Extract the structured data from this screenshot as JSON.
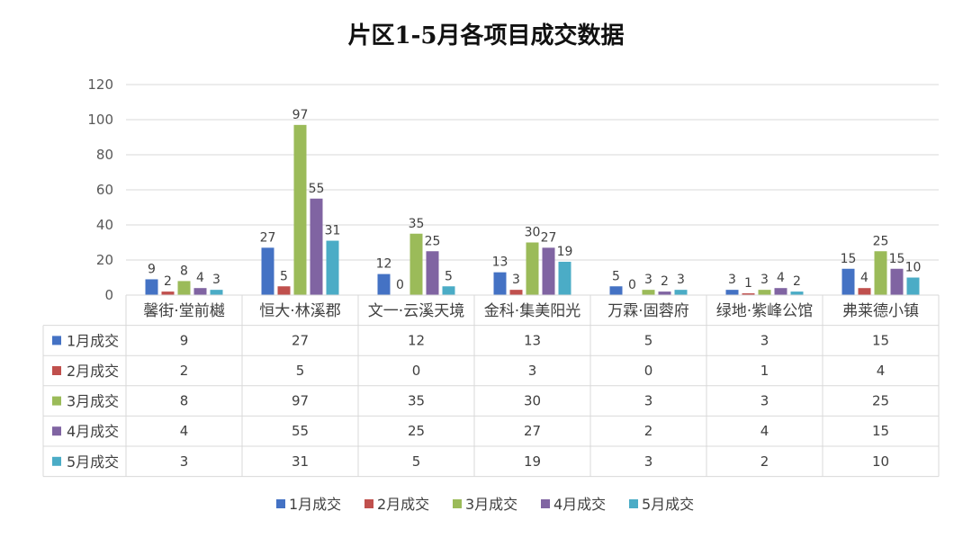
{
  "chart_data": {
    "type": "bar",
    "title": "片区1-5月各项目成交数据",
    "categories": [
      "馨街·堂前樾",
      "恒大·林溪郡",
      "文一·云溪天境",
      "金科·集美阳光",
      "万霖·固蓉府",
      "绿地·紫峰公馆",
      "弗莱德小镇"
    ],
    "series": [
      {
        "name": "1月成交",
        "color": "#4472C4",
        "values": [
          9,
          27,
          12,
          13,
          5,
          3,
          15
        ]
      },
      {
        "name": "2月成交",
        "color": "#C0504D",
        "values": [
          2,
          5,
          0,
          3,
          0,
          1,
          4
        ]
      },
      {
        "name": "3月成交",
        "color": "#9BBB59",
        "values": [
          8,
          97,
          35,
          30,
          3,
          3,
          25
        ]
      },
      {
        "name": "4月成交",
        "color": "#8064A2",
        "values": [
          4,
          55,
          25,
          27,
          2,
          4,
          15
        ]
      },
      {
        "name": "5月成交",
        "color": "#4BACC6",
        "values": [
          3,
          31,
          5,
          19,
          3,
          2,
          10
        ]
      }
    ],
    "ylim": [
      0,
      120
    ],
    "yticks": [
      0,
      20,
      40,
      60,
      80,
      100,
      120
    ],
    "grid": true,
    "data_labels": true,
    "data_table": true,
    "legend": "bottom"
  }
}
